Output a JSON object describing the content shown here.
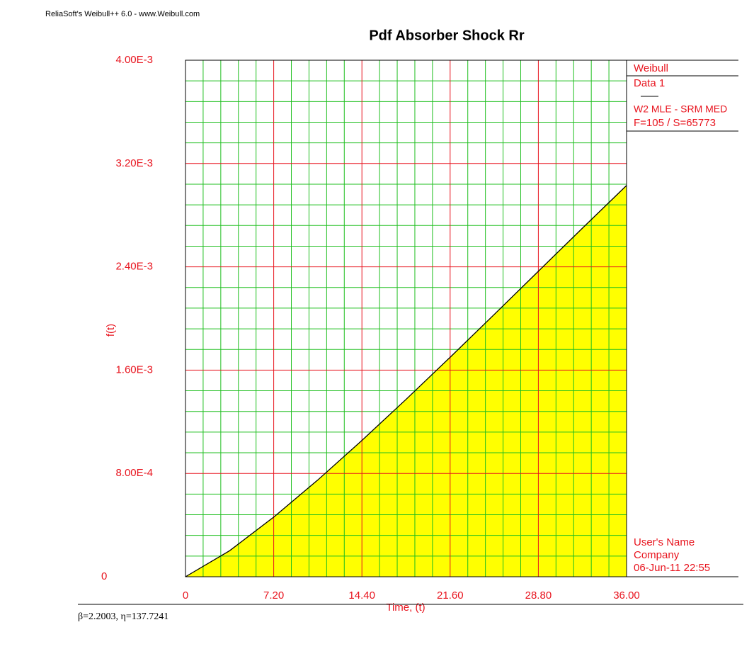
{
  "chart_data": {
    "type": "area",
    "header": "ReliaSoft's Weibull++ 6.0 - www.Weibull.com",
    "title": "Pdf Absorber Shock Rr",
    "y_label": "f(t)",
    "x_label": "Time, (t)",
    "legend": [
      "Weibull",
      "Data 1",
      "W2 MLE - SRM MED",
      "F=105 / S=65773"
    ],
    "user_info": [
      "User's Name",
      "Company",
      "06-Jun-11 22:55"
    ],
    "footer": "β=2.2003, η=137.7241",
    "x": [
      0,
      3.6,
      7.2,
      10.8,
      14.4,
      18,
      21.6,
      25.2,
      28.8,
      32.4,
      36
    ],
    "values": [
      0,
      0.0002013,
      0.0004617,
      0.0007494,
      0.0010554,
      0.0013734,
      0.0016996,
      0.0020311,
      0.0023657,
      0.0026995,
      0.0030302
    ],
    "color": "#ffff00",
    "line_color": "#000000",
    "xlim": [
      0,
      36
    ],
    "ylim": [
      0,
      0.004
    ],
    "xticks": [
      0,
      {
        "value": 7.2,
        "label": "7.20"
      },
      {
        "value": 14.4,
        "label": "14.40"
      },
      {
        "value": 21.6,
        "label": "21.60"
      },
      {
        "value": 28.8,
        "label": "28.80"
      },
      {
        "value": 36,
        "label": "36.00"
      }
    ],
    "yticks": [
      0,
      {
        "value": 0.0008,
        "label": "8.00E-4"
      },
      {
        "value": 0.0016,
        "label": "1.60E-3"
      },
      {
        "value": 0.0024,
        "label": "2.40E-3"
      },
      {
        "value": 0.0032,
        "label": "3.20E-3"
      },
      {
        "value": 0.004,
        "label": "4.00E-3"
      }
    ],
    "grid": true,
    "minor_grid": true
  }
}
